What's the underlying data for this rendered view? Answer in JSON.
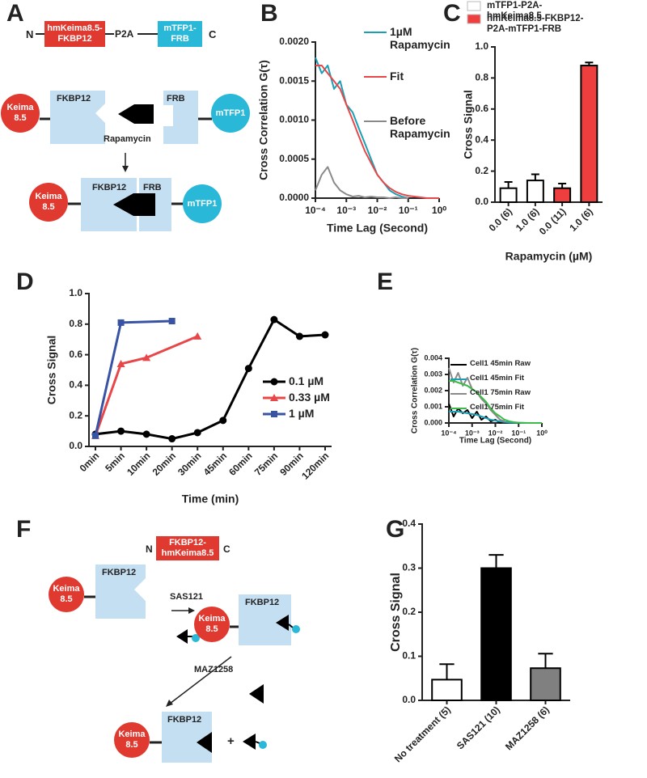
{
  "panel_labels": [
    "A",
    "B",
    "C",
    "D",
    "E",
    "F",
    "G"
  ],
  "diagram_a": {
    "construct": {
      "n": "N",
      "left": "hmKeima8.5-FKBP12",
      "linker": "P2A",
      "right": "mTFP1-FRB",
      "c": "C"
    },
    "keima": "Keima 8.5",
    "fkbp12": "FKBP12",
    "frb": "FRB",
    "mtfp1": "mTFP1",
    "drug": "Rapamycin"
  },
  "diagram_f": {
    "construct": {
      "n": "N",
      "label": "FKBP12-hmKeima8.5",
      "c": "C"
    },
    "keima": "Keima 8.5",
    "fkbp12": "FKBP12",
    "drug_1": "SAS121",
    "drug_2": "MAZ1258",
    "plus": "+"
  },
  "chart_data": [
    {
      "type": "line",
      "xlabel": "Time Lag (Second)",
      "ylabel": "Cross Correlation G(τ)",
      "xlog": true,
      "xlim": [
        0.0001,
        1
      ],
      "xticks": [
        {
          "value": 0.0001,
          "label": "10⁻⁴"
        },
        {
          "value": 0.001,
          "label": "10⁻³"
        },
        {
          "value": 0.01,
          "label": "10⁻²"
        },
        {
          "value": 0.1,
          "label": "10⁻¹"
        },
        {
          "value": 1,
          "label": "10⁰"
        }
      ],
      "ylim": [
        0,
        0.002
      ],
      "yticks": [
        {
          "value": 0,
          "label": "0.0000"
        },
        0.0005,
        {
          "value": 0.001,
          "label": "0.0010"
        },
        0.0015,
        {
          "value": 0.002,
          "label": "0.0020"
        }
      ],
      "x": [
        0.0001,
        0.00016,
        0.00025,
        0.0004,
        0.00063,
        0.001,
        0.0016,
        0.0025,
        0.004,
        0.0063,
        0.01,
        0.016,
        0.025,
        0.04,
        0.063,
        0.1,
        0.16,
        0.25,
        0.4,
        0.63,
        1
      ],
      "legend": "upper right",
      "series": [
        {
          "name": "1µM Rapamycin",
          "color": "#1a9fb5",
          "values": [
            0.0018,
            0.0016,
            0.0017,
            0.0014,
            0.0015,
            0.0012,
            0.0011,
            0.0009,
            0.0007,
            0.0005,
            0.0003,
            0.0002,
            0.0001,
            5e-05,
            2e-05,
            0,
            null,
            null,
            null,
            null,
            null
          ]
        },
        {
          "name": "Fit",
          "color": "#e8474a",
          "values": [
            0.0017,
            0.0017,
            0.0016,
            0.0015,
            0.0014,
            0.0012,
            0.001,
            0.0008,
            0.0006,
            0.00045,
            0.0003,
            0.0002,
            0.00013,
            8e-05,
            5e-05,
            3e-05,
            2e-05,
            1e-05,
            0,
            0,
            0
          ]
        },
        {
          "name": "Before Rapamycin",
          "color": "#8a8a8a",
          "values": [
            0.0001,
            0.0003,
            0.0004,
            0.0002,
            0.0001,
            5e-05,
            2e-05,
            3e-05,
            1e-05,
            2e-05,
            1e-05,
            1e-05,
            0,
            1e-05,
            0,
            0,
            null,
            null,
            null,
            null,
            null
          ]
        }
      ]
    },
    {
      "type": "bar",
      "xlabel": "Rapamycin (µM)",
      "ylabel": "Cross Signal",
      "categories": [
        "0.0 (6)",
        "1.0 (6)",
        "0.0 (11)",
        "1.0 (6)"
      ],
      "ylim": [
        0,
        1
      ],
      "yticks": [
        {
          "value": 0,
          "label": "0.0"
        },
        0.2,
        0.4,
        0.6,
        0.8,
        {
          "value": 1,
          "label": "1.0"
        }
      ],
      "legend": "above",
      "series": [
        {
          "name": "mTFP1-P2A-hmKeima8.5",
          "color": "#ffffff",
          "values": [
            0.09,
            0.14,
            null,
            null
          ],
          "errors": [
            0.04,
            0.04,
            null,
            null
          ]
        },
        {
          "name": "hmKeima8.5-FKBP12-P2A-mTFP1-FRB",
          "color": "#ee3e3e",
          "values": [
            null,
            null,
            0.09,
            0.88
          ],
          "errors": [
            null,
            null,
            0.03,
            0.02
          ]
        }
      ]
    },
    {
      "type": "line",
      "xlabel": "Time (min)",
      "ylabel": "Cross Signal",
      "categories": [
        "0min",
        "5min",
        "10min",
        "20min",
        "30min",
        "45min",
        "60min",
        "75min",
        "90min",
        "120min"
      ],
      "ylim": [
        0,
        1
      ],
      "yticks": [
        {
          "value": 0,
          "label": "0.0"
        },
        0.2,
        0.4,
        0.6,
        0.8,
        {
          "value": 1,
          "label": "1.0"
        }
      ],
      "legend": "lower right",
      "series": [
        {
          "name": "0.1 µM",
          "color": "#000000",
          "marker": "circle",
          "values": [
            0.08,
            0.1,
            0.08,
            0.05,
            0.09,
            0.17,
            0.51,
            0.83,
            0.72,
            0.73
          ]
        },
        {
          "name": "0.33 µM",
          "color": "#e8474a",
          "marker": "triangle",
          "x": [
            "0min",
            "5min",
            "10min",
            "30min"
          ],
          "values": [
            0.07,
            0.54,
            0.58,
            0.72
          ]
        },
        {
          "name": "1 µM",
          "color": "#3953a4",
          "marker": "square",
          "x": [
            "0min",
            "5min",
            "20min"
          ],
          "values": [
            0.07,
            0.81,
            0.82
          ]
        }
      ]
    },
    {
      "type": "line",
      "xlabel": "Time Lag (Second)",
      "ylabel": "Cross Correlation G(τ)",
      "xlog": true,
      "xlim": [
        0.0001,
        1
      ],
      "xticks": [
        {
          "value": 0.0001,
          "label": "10⁻⁴"
        },
        {
          "value": 0.001,
          "label": "10⁻³"
        },
        {
          "value": 0.01,
          "label": "10⁻²"
        },
        {
          "value": 0.1,
          "label": "10⁻¹"
        },
        {
          "value": 1,
          "label": "10⁰"
        }
      ],
      "ylim": [
        0,
        0.004
      ],
      "yticks": [
        {
          "value": 0,
          "label": "0.000"
        },
        0.001,
        0.002,
        0.003,
        0.004
      ],
      "x": [
        0.0001,
        0.00016,
        0.00025,
        0.0004,
        0.00063,
        0.001,
        0.0016,
        0.0025,
        0.004,
        0.0063,
        0.01,
        0.016,
        0.025,
        0.04,
        0.063,
        0.1,
        0.16,
        0.25,
        0.4,
        0.63,
        1
      ],
      "legend": "upper left",
      "series": [
        {
          "name": "Cell1 45min Raw",
          "color": "#000000",
          "values": [
            0.0012,
            0.0004,
            0.0009,
            0.0006,
            0.0008,
            0.0003,
            0.0007,
            0.0002,
            0.0004,
            0.0001,
            0.0002,
            0,
            0.0001,
            null,
            null,
            null,
            null,
            null,
            null,
            null,
            null
          ]
        },
        {
          "name": "Cell1 45min Fit",
          "color": "#1a9fb5",
          "values": [
            0.0007,
            0.0007,
            0.0007,
            0.00065,
            0.0006,
            0.00055,
            0.0005,
            0.0004,
            0.0003,
            0.0002,
            0.00015,
            0.0001,
            6e-05,
            3e-05,
            2e-05,
            1e-05,
            0,
            0,
            0,
            0,
            0
          ]
        },
        {
          "name": "Cell1 75min Raw",
          "color": "#8a8a8a",
          "values": [
            0.0034,
            0.0025,
            0.0031,
            0.0023,
            0.0028,
            0.0021,
            0.0019,
            0.0015,
            0.0012,
            0.0008,
            0.0005,
            0.0002,
            0.0001,
            null,
            null,
            null,
            null,
            null,
            null,
            null,
            null
          ]
        },
        {
          "name": "Cell1 75min Fit",
          "color": "#3dbb4a",
          "values": [
            0.0026,
            0.0026,
            0.0025,
            0.0024,
            0.0023,
            0.0021,
            0.0019,
            0.0016,
            0.0013,
            0.0009,
            0.0006,
            0.0004,
            0.0002,
            0.0001,
            5e-05,
            2e-05,
            1e-05,
            0,
            0,
            0,
            0
          ]
        }
      ]
    },
    {
      "type": "bar",
      "ylabel": "Cross Signal",
      "categories": [
        "No treatment (5)",
        "SAS121 (10)",
        "MAZ1258 (6)"
      ],
      "values": [
        0.047,
        0.3,
        0.073
      ],
      "errors": [
        0.035,
        0.03,
        0.033
      ],
      "colors": [
        "#ffffff",
        "#000000",
        "#808080"
      ],
      "ylim": [
        0,
        0.4
      ],
      "yticks": [
        {
          "value": 0,
          "label": "0.0"
        },
        0.1,
        0.2,
        0.3,
        0.4
      ]
    }
  ]
}
